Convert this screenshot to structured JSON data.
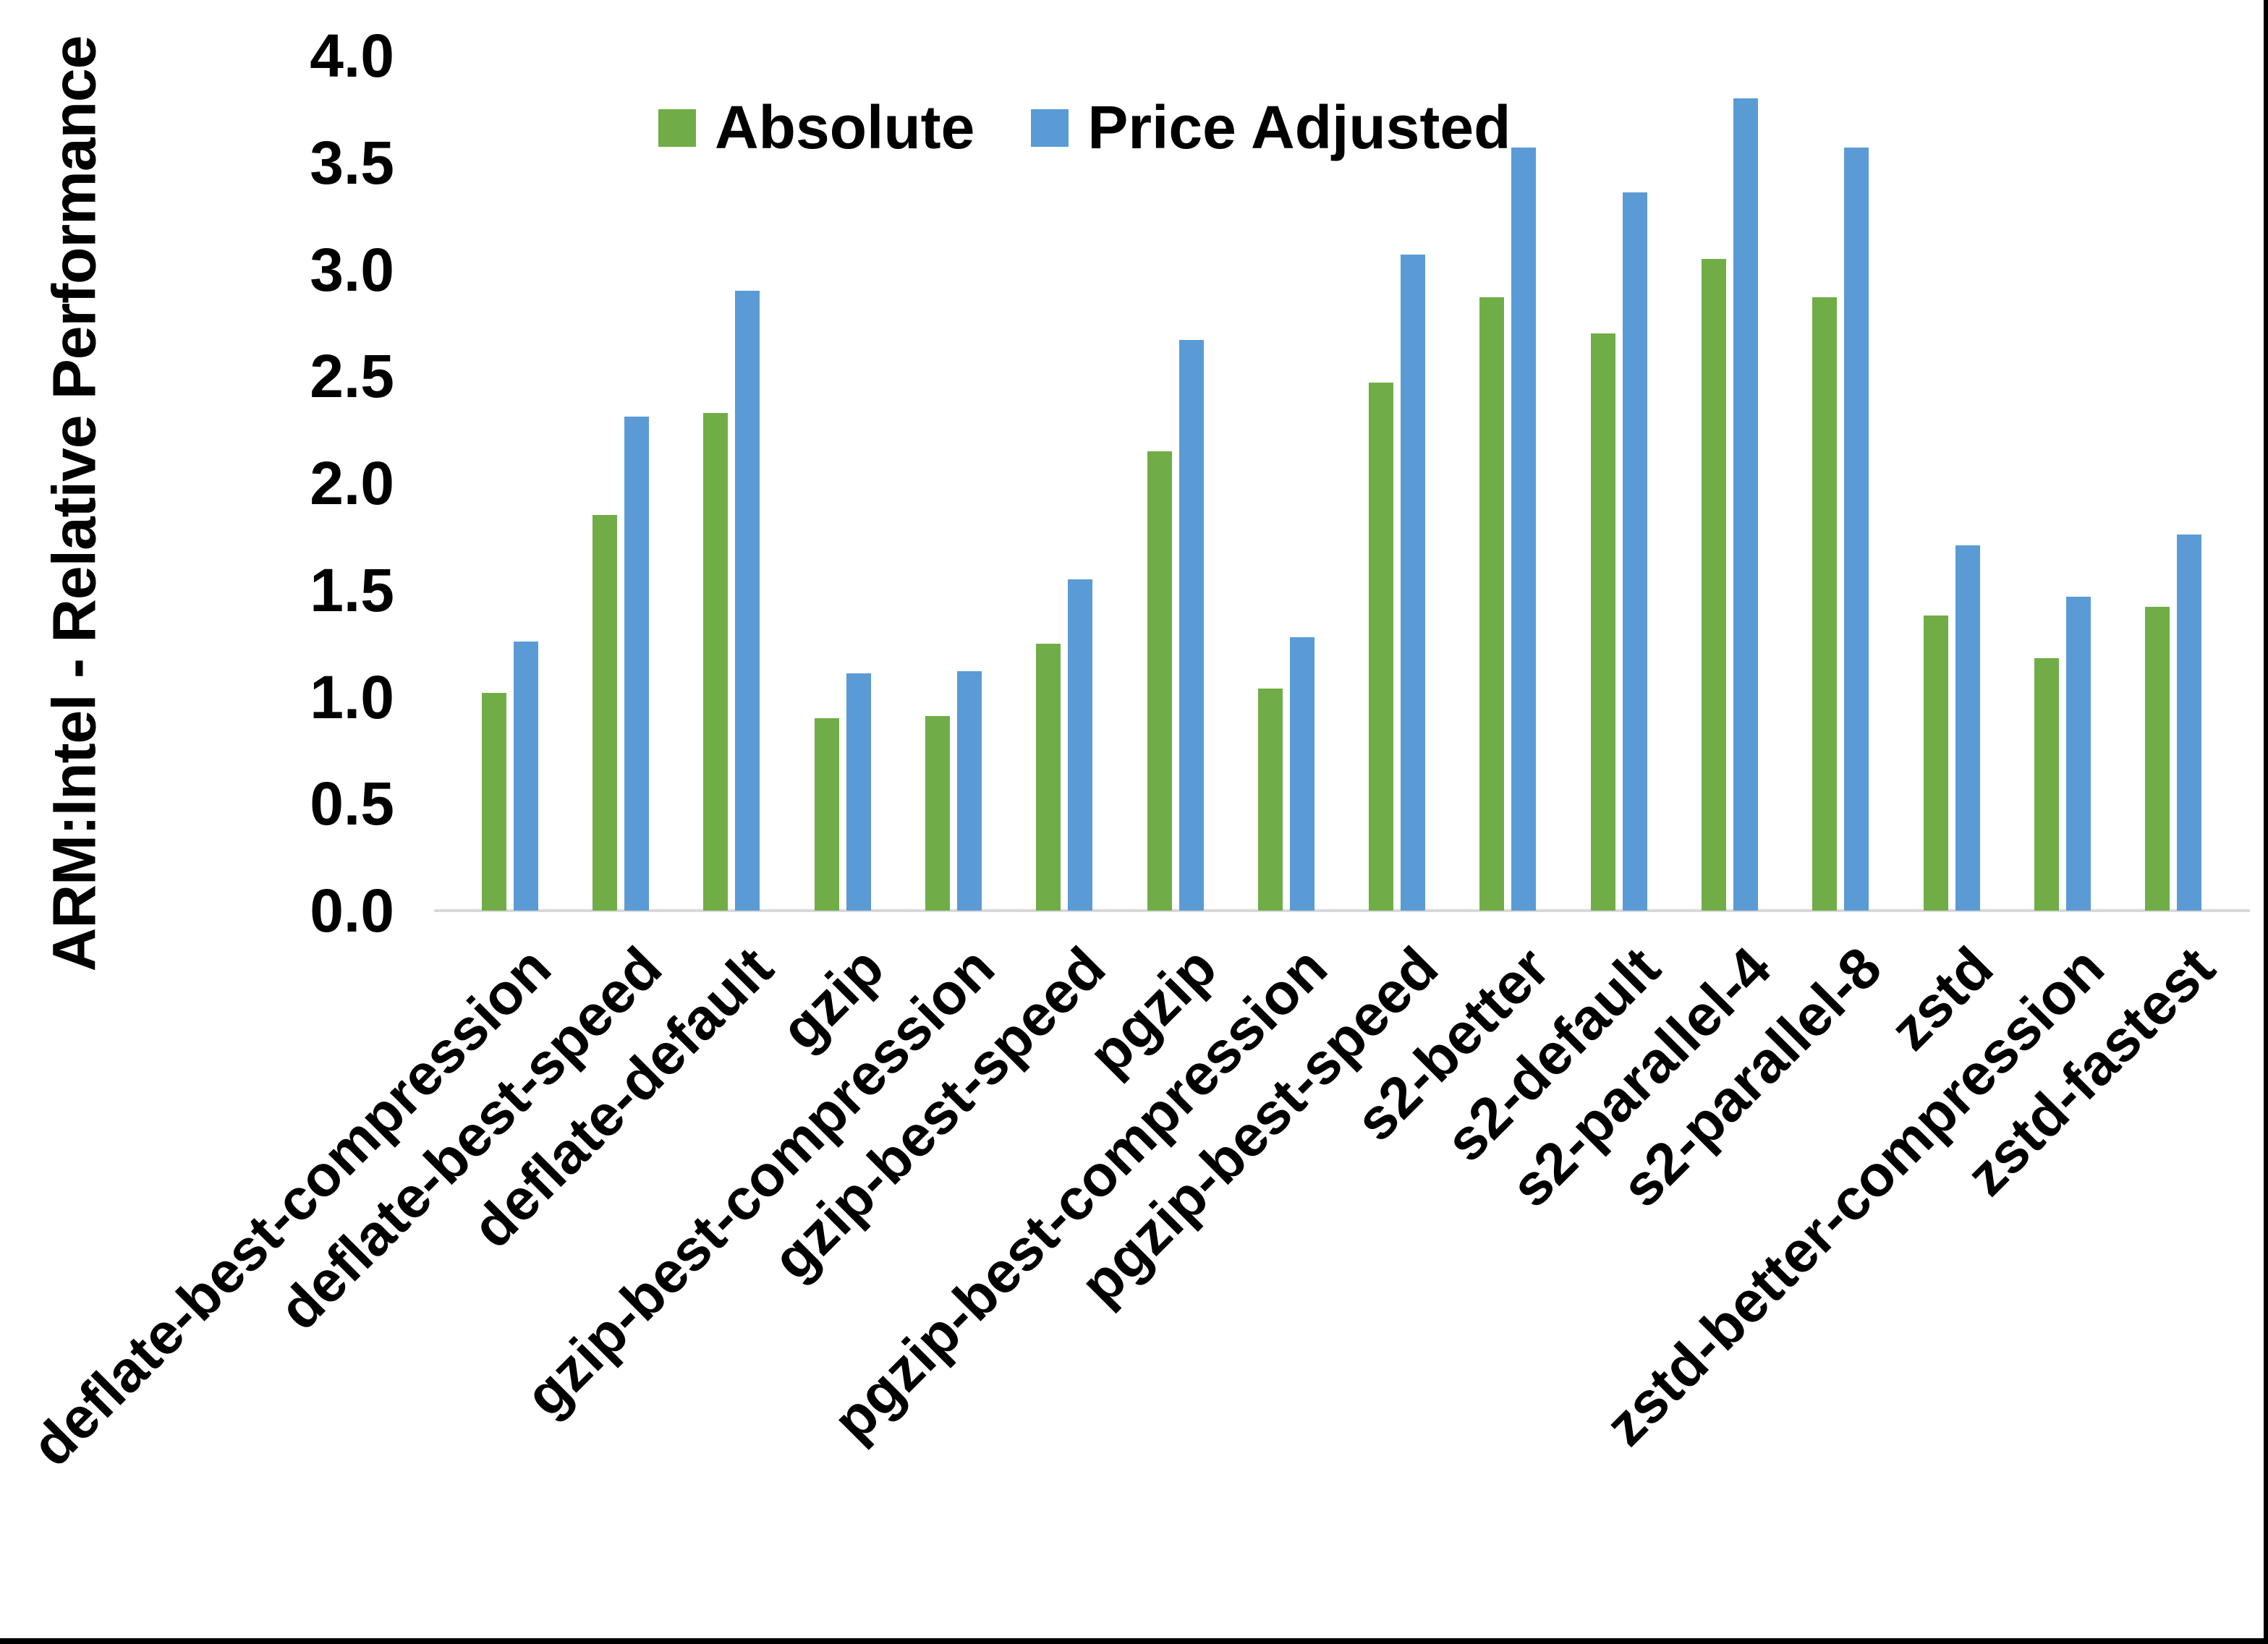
{
  "y_axis": {
    "title": "ARM:Intel - Relative Performance",
    "ticks": [
      "0.0",
      "0.5",
      "1.0",
      "1.5",
      "2.0",
      "2.5",
      "3.0",
      "3.5",
      "4.0"
    ]
  },
  "legend": {
    "items": [
      {
        "label": "Absolute",
        "color": "#70ad47"
      },
      {
        "label": "Price Adjusted",
        "color": "#5b9bd5"
      }
    ]
  },
  "chart_data": {
    "type": "bar",
    "title": "",
    "ylabel": "ARM:Intel - Relative Performance",
    "ylim": [
      0.0,
      4.0
    ],
    "ytick_step": 0.5,
    "grid": false,
    "legend_position": "top",
    "categories": [
      "deflate-best-compression",
      "deflate-best-speed",
      "deflate-default",
      "gzip",
      "gzip-best-compression",
      "gzip-best-speed",
      "pgzip",
      "pgzip-best-compression",
      "pgzip-best-speed",
      "s2-better",
      "s2-default",
      "s2-parallel-4",
      "s2-parallel-8",
      "zstd",
      "zstd-better-compression",
      "zstd-fastest"
    ],
    "series": [
      {
        "name": "Absolute",
        "color": "#70ad47",
        "values": [
          1.02,
          1.85,
          2.33,
          0.9,
          0.91,
          1.25,
          2.15,
          1.04,
          2.47,
          2.87,
          2.7,
          3.05,
          2.87,
          1.38,
          1.18,
          1.42
        ]
      },
      {
        "name": "Price Adjusted",
        "color": "#5b9bd5",
        "values": [
          1.26,
          2.31,
          2.9,
          1.11,
          1.12,
          1.55,
          2.67,
          1.28,
          3.07,
          3.57,
          3.36,
          3.8,
          3.57,
          1.71,
          1.47,
          1.76
        ]
      }
    ]
  },
  "frame": {
    "border_color": "#000000",
    "axis_line_color": "#d9d9d9",
    "background": "#ffffff"
  }
}
